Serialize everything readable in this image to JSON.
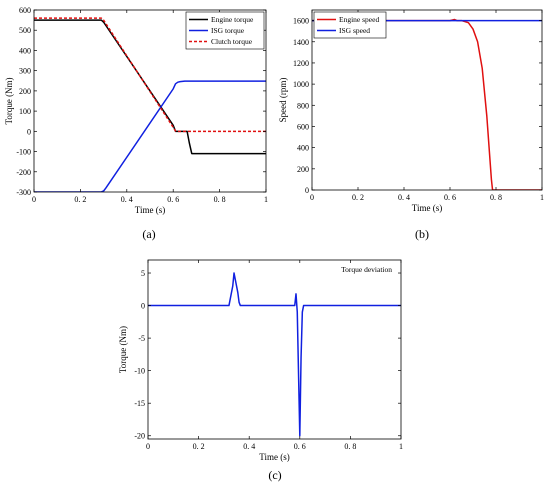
{
  "chart_data": [
    {
      "type": "line",
      "panel_label": "(a)",
      "xlabel": "Time  (s)",
      "ylabel": "Torque (Nm)",
      "xlim": [
        0,
        1
      ],
      "ylim": [
        -300,
        600
      ],
      "xticks": [
        0,
        0.2,
        0.4,
        0.6,
        0.8,
        1
      ],
      "xtick_labels": [
        "0",
        "0. 2",
        "0. 4",
        "0. 6",
        "0. 8",
        "1"
      ],
      "yticks": [
        -300,
        -200,
        -100,
        0,
        100,
        200,
        300,
        400,
        500,
        600
      ],
      "yticklabels": [
        "-300",
        "-200",
        "-100",
        "0",
        "100",
        "200",
        "300",
        "400",
        "500",
        "600"
      ],
      "legend_position": "top-right",
      "grid": false,
      "series": [
        {
          "name": "Engine torque",
          "color": "#000000",
          "dash": "solid",
          "x": [
            0,
            0.29,
            0.3,
            0.6,
            0.61,
            0.63,
            0.66,
            0.67,
            0.68,
            1
          ],
          "y": [
            550,
            550,
            540,
            30,
            0,
            0,
            0,
            -60,
            -110,
            -110
          ]
        },
        {
          "name": "ISG torque",
          "color": "#1020e0",
          "dash": "solid",
          "x": [
            0,
            0.29,
            0.3,
            0.31,
            0.6,
            0.61,
            0.62,
            0.63,
            0.65,
            1
          ],
          "y": [
            -300,
            -300,
            -295,
            -280,
            210,
            235,
            243,
            246,
            248,
            248
          ]
        },
        {
          "name": "Clutch torque",
          "color": "#e01010",
          "dash": "dashed",
          "x": [
            0,
            0.29,
            0.3,
            0.6,
            0.61,
            0.62,
            1
          ],
          "y": [
            560,
            560,
            550,
            20,
            2,
            0,
            0
          ]
        }
      ]
    },
    {
      "type": "line",
      "panel_label": "(b)",
      "xlabel": "Time  (s)",
      "ylabel": "Speed  (rpm)",
      "xlim": [
        0,
        1
      ],
      "ylim": [
        0,
        1700
      ],
      "xticks": [
        0,
        0.2,
        0.4,
        0.6,
        0.8,
        1
      ],
      "xtick_labels": [
        "0",
        "0. 2",
        "0. 4",
        "0. 6",
        "0. 8",
        "1"
      ],
      "yticks": [
        0,
        200,
        400,
        600,
        800,
        1000,
        1200,
        1400,
        1600
      ],
      "yticklabels": [
        "0",
        "200",
        "400",
        "600",
        "800",
        "1000",
        "1200",
        "1400",
        "1600"
      ],
      "legend_position": "top-left",
      "grid": false,
      "series": [
        {
          "name": "Engine speed",
          "color": "#e01010",
          "dash": "solid",
          "x": [
            0,
            0.6,
            0.62,
            0.63,
            0.65,
            0.68,
            0.7,
            0.72,
            0.74,
            0.76,
            0.77,
            0.78,
            0.785,
            0.8,
            1
          ],
          "y": [
            1600,
            1600,
            1610,
            1600,
            1600,
            1580,
            1520,
            1400,
            1150,
            700,
            400,
            100,
            0,
            0,
            0
          ]
        },
        {
          "name": "ISG speed",
          "color": "#1020e0",
          "dash": "solid",
          "x": [
            0,
            1
          ],
          "y": [
            1600,
            1600
          ]
        }
      ]
    },
    {
      "type": "line",
      "panel_label": "(c)",
      "xlabel": "Time  (s)",
      "ylabel": "Torque (Nm)",
      "xlim": [
        0,
        1
      ],
      "ylim": [
        -20.5,
        7
      ],
      "xticks": [
        0,
        0.2,
        0.4,
        0.6,
        0.8,
        1
      ],
      "xtick_labels": [
        "0",
        "0. 2",
        "0. 4",
        "0. 6",
        "0. 8",
        "1"
      ],
      "yticks": [
        -20,
        -15,
        -10,
        -5,
        0,
        5
      ],
      "yticklabels": [
        "-20",
        "-15",
        "-10",
        "-5",
        "0",
        "5"
      ],
      "annotation": "Torque deviation",
      "grid": false,
      "series": [
        {
          "name": "Torque deviation",
          "color": "#1020e0",
          "dash": "solid",
          "x": [
            0,
            0.32,
            0.335,
            0.34,
            0.35,
            0.355,
            0.36,
            0.365,
            0.58,
            0.585,
            0.59,
            0.6,
            0.605,
            0.61,
            0.615,
            1
          ],
          "y": [
            0,
            0,
            3,
            5,
            3,
            2,
            0.5,
            0,
            0,
            1.8,
            -1,
            -20,
            -8,
            -1,
            0,
            0
          ]
        }
      ]
    }
  ]
}
